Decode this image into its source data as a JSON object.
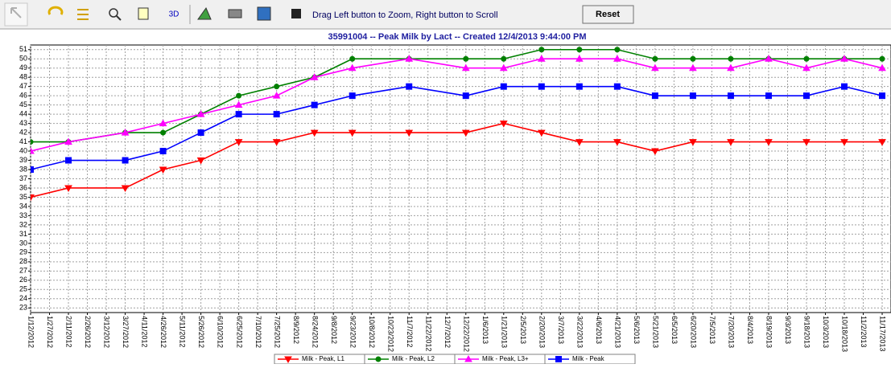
{
  "toolbar": {
    "label_3d": "3D",
    "hint": "Drag Left button to Zoom, Right button to Scroll",
    "reset": "Reset"
  },
  "chart_data": {
    "type": "line",
    "title": "35991004 -- Peak Milk by Lact -- Created 12/4/2013 9:44:00 PM",
    "x": [
      "1/12/2012",
      "2/11/2012",
      "3/27/2012",
      "4/26/2012",
      "5/26/2012",
      "6/25/2012",
      "7/25/2012",
      "8/24/2012",
      "9/23/2012",
      "11/7/2012",
      "12/22/2012",
      "1/21/2013",
      "2/20/2013",
      "3/22/2013",
      "4/21/2013",
      "5/21/2013",
      "6/20/2013",
      "7/20/2013",
      "8/19/2013",
      "9/18/2013",
      "10/18/2013",
      "11/17/2013"
    ],
    "series": [
      {
        "name": "Milk - Peak, L1",
        "color": "#ff0000",
        "marker": "triangle-down",
        "values": [
          35,
          36,
          36,
          38,
          39,
          41,
          41,
          42,
          42,
          42,
          42,
          43,
          42,
          41,
          41,
          40,
          41,
          41,
          41,
          41,
          41,
          41
        ]
      },
      {
        "name": "Milk - Peak, L2",
        "color": "#008000",
        "marker": "circle",
        "values": [
          41,
          41,
          42,
          42,
          44,
          46,
          47,
          48,
          50,
          50,
          50,
          50,
          51,
          51,
          51,
          50,
          50,
          50,
          50,
          50,
          50,
          50
        ]
      },
      {
        "name": "Milk - Peak, L3+",
        "color": "#ff00ff",
        "marker": "triangle-up",
        "values": [
          40,
          41,
          42,
          43,
          44,
          45,
          46,
          48,
          49,
          50,
          49,
          49,
          50,
          50,
          50,
          49,
          49,
          49,
          50,
          49,
          50,
          49
        ]
      },
      {
        "name": "Milk - Peak",
        "color": "#0000ff",
        "marker": "square",
        "values": [
          38,
          39,
          39,
          40,
          42,
          44,
          44,
          45,
          46,
          47,
          46,
          47,
          47,
          47,
          47,
          46,
          46,
          46,
          46,
          46,
          47,
          46
        ]
      }
    ],
    "xlim": [
      "1/12/2012",
      "11/24/2013"
    ],
    "xticks": [
      "1/12/2012",
      "1/27/2012",
      "2/11/2012",
      "2/26/2012",
      "3/12/2012",
      "3/27/2012",
      "4/11/2012",
      "4/26/2012",
      "5/11/2012",
      "5/26/2012",
      "6/10/2012",
      "6/25/2012",
      "7/10/2012",
      "7/25/2012",
      "8/9/2012",
      "8/24/2012",
      "9/8/2012",
      "9/23/2012",
      "10/8/2012",
      "10/23/2012",
      "11/7/2012",
      "11/22/2012",
      "12/7/2012",
      "12/22/2012",
      "1/6/2013",
      "1/21/2013",
      "2/5/2013",
      "2/20/2013",
      "3/7/2013",
      "3/22/2013",
      "4/6/2013",
      "4/21/2013",
      "5/6/2013",
      "5/21/2013",
      "6/5/2013",
      "6/20/2013",
      "7/5/2013",
      "7/20/2013",
      "8/4/2013",
      "8/19/2013",
      "9/3/2013",
      "9/18/2013",
      "10/3/2013",
      "10/18/2013",
      "11/2/2013",
      "11/17/2013"
    ],
    "ylim": [
      22.5,
      51.5
    ],
    "yticks": [
      23,
      24,
      25,
      26,
      27,
      28,
      29,
      30,
      31,
      32,
      33,
      34,
      35,
      36,
      37,
      38,
      39,
      40,
      41,
      42,
      43,
      44,
      45,
      46,
      47,
      48,
      49,
      50,
      51
    ],
    "grid": true,
    "legend": "bottom"
  }
}
